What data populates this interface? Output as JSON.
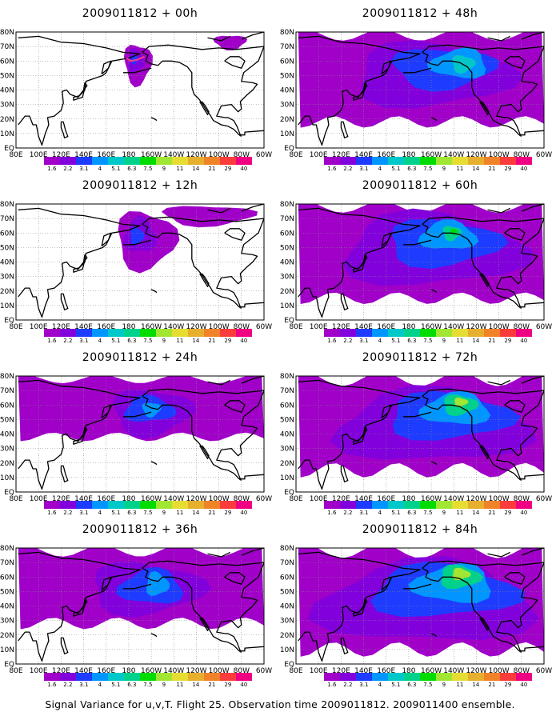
{
  "panels": [
    {
      "title": "2009011812 + 00h",
      "lead": 0
    },
    {
      "title": "2009011812 + 48h",
      "lead": 48
    },
    {
      "title": "2009011812 + 12h",
      "lead": 12
    },
    {
      "title": "2009011812 + 60h",
      "lead": 60
    },
    {
      "title": "2009011812 + 24h",
      "lead": 24
    },
    {
      "title": "2009011812 + 72h",
      "lead": 72
    },
    {
      "title": "2009011812 + 36h",
      "lead": 36
    },
    {
      "title": "2009011812 + 84h",
      "lead": 84
    }
  ],
  "map": {
    "lat_labels": [
      "80N",
      "70N",
      "60N",
      "50N",
      "40N",
      "30N",
      "20N",
      "10N",
      "EQ"
    ],
    "lon_labels": [
      "80E",
      "100E",
      "120E",
      "140E",
      "160E",
      "180",
      "160W",
      "140W",
      "120W",
      "100W",
      "80W",
      "60W"
    ],
    "lat_range": [
      0,
      80
    ],
    "lon_range_east": [
      80,
      300
    ]
  },
  "colorbar": {
    "labels": [
      "1.6",
      "2.2",
      "3.1",
      "4",
      "5.1",
      "6.3",
      "7.5",
      "9",
      "11",
      "14",
      "21",
      "29",
      "40"
    ],
    "colors": [
      "#a000c8",
      "#8200dc",
      "#1e3cff",
      "#0096ff",
      "#00c8c8",
      "#00d28c",
      "#00dc00",
      "#a0e632",
      "#e6dc32",
      "#e6af2d",
      "#f08228",
      "#fa3c3c",
      "#f00082"
    ]
  },
  "caption": "Signal Variance for u,v,T. Flight 25. Observation time 2009011812. 2009011400 ensemble."
}
